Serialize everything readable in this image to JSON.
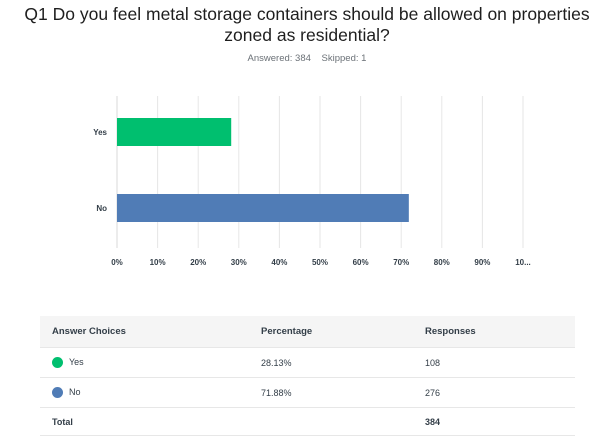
{
  "question": {
    "title_line1": "Q1 Do you feel metal storage containers should be allowed on properties",
    "title_line2": "zoned as residential?",
    "answered": "Answered: 384",
    "skipped": "Skipped: 1"
  },
  "chart_data": {
    "type": "bar",
    "orientation": "horizontal",
    "categories": [
      "Yes",
      "No"
    ],
    "values": [
      28.13,
      71.88
    ],
    "colors": [
      "#00bf6f",
      "#507cb6"
    ],
    "xlim": [
      0,
      100
    ],
    "x_ticks": [
      "0%",
      "10%",
      "20%",
      "30%",
      "40%",
      "50%",
      "60%",
      "70%",
      "80%",
      "90%",
      "10..."
    ],
    "grid": true
  },
  "table": {
    "headers": [
      "Answer Choices",
      "Percentage",
      "Responses"
    ],
    "rows": [
      {
        "choice": "Yes",
        "percentage": "28.13%",
        "responses": "108",
        "color": "#00bf6f"
      },
      {
        "choice": "No",
        "percentage": "71.88%",
        "responses": "276",
        "color": "#507cb6"
      }
    ],
    "total_label": "Total",
    "total_value": "384"
  }
}
